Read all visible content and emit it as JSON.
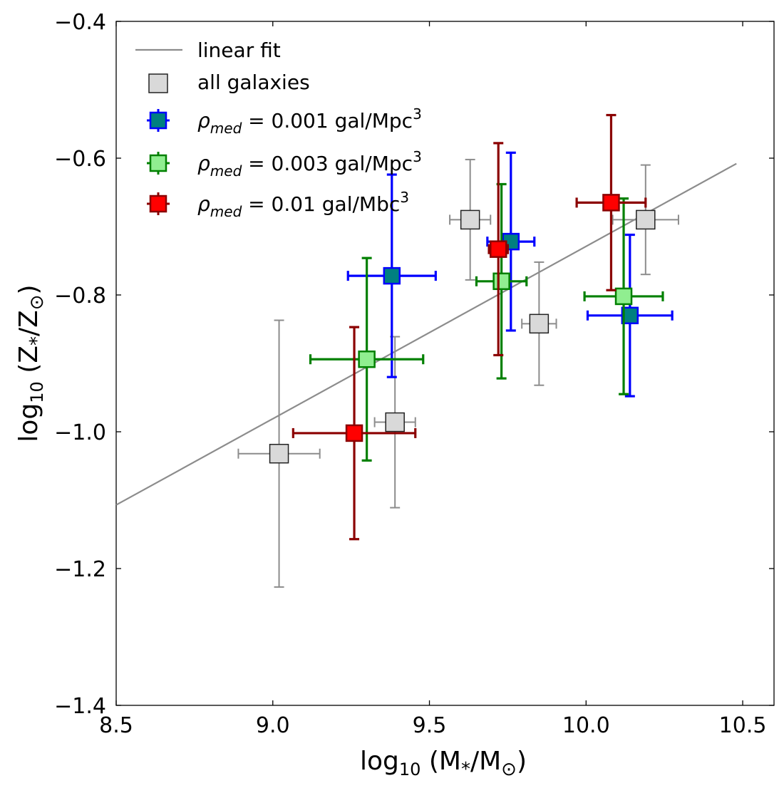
{
  "chart_data": {
    "type": "scatter",
    "title": "",
    "xlabel": {
      "main": "log",
      "sub": "10",
      "rest": " (M",
      "star": "*",
      "mid": "/M",
      "sun": "⊙",
      "end": ")"
    },
    "ylabel": {
      "main": "log",
      "sub": "10",
      "rest": " (Z",
      "star": "*",
      "mid": "/Z",
      "sun": "⊙",
      "end": ")"
    },
    "xlim": [
      8.5,
      10.6
    ],
    "ylim": [
      -1.4,
      -0.4
    ],
    "xticks": [
      "8.5",
      "9.0",
      "9.5",
      "10.0",
      "10.5"
    ],
    "yticks": [
      "−0.4",
      "−0.6",
      "−0.8",
      "−1.0",
      "−1.2",
      "−1.4"
    ],
    "grid": false,
    "legend_position": "top-left",
    "fit": {
      "name": "linear fit",
      "x": [
        8.5,
        10.48
      ],
      "y": [
        -1.107,
        -0.608
      ],
      "color": "#8c8c8c"
    },
    "series": [
      {
        "name": "all galaxies",
        "marker_face": "#d9d9d9",
        "marker_edge": "#222222",
        "err_color": "#8c8c8c",
        "points": [
          {
            "x": 9.02,
            "y": -1.032,
            "xerr": 0.13,
            "yerr": 0.195
          },
          {
            "x": 9.39,
            "y": -0.986,
            "xerr": 0.065,
            "yerr": 0.125
          },
          {
            "x": 9.63,
            "y": -0.69,
            "xerr": 0.065,
            "yerr": 0.088
          },
          {
            "x": 9.85,
            "y": -0.842,
            "xerr": 0.055,
            "yerr": 0.09
          },
          {
            "x": 10.19,
            "y": -0.69,
            "xerr": 0.105,
            "yerr": 0.08
          }
        ]
      },
      {
        "name_sym": "ρ",
        "name_sub": "med",
        "name_val": " = 0.001 gal/Mpc",
        "name_sup": "3",
        "marker_face": "#008080",
        "marker_edge": "#0000ff",
        "err_color": "#0000ff",
        "points": [
          {
            "x": 9.38,
            "y": -0.772,
            "xerr": 0.14,
            "yerr": 0.148
          },
          {
            "x": 9.76,
            "y": -0.722,
            "xerr": 0.075,
            "yerr": 0.13
          },
          {
            "x": 10.14,
            "y": -0.83,
            "xerr": 0.135,
            "yerr": 0.118
          }
        ]
      },
      {
        "name_sym": "ρ",
        "name_sub": "med",
        "name_val": " = 0.003 gal/Mpc",
        "name_sup": "3",
        "marker_face": "#90ee90",
        "marker_edge": "#008000",
        "err_color": "#008000",
        "points": [
          {
            "x": 9.3,
            "y": -0.894,
            "xerr": 0.18,
            "yerr": 0.148
          },
          {
            "x": 9.73,
            "y": -0.78,
            "xerr": 0.08,
            "yerr": 0.142
          },
          {
            "x": 10.12,
            "y": -0.802,
            "xerr": 0.125,
            "yerr": 0.143
          }
        ]
      },
      {
        "name_sym": "ρ",
        "name_sub": "med",
        "name_val": " = 0.01 gal/Mbc",
        "name_sup": "3",
        "marker_face": "#ff0000",
        "marker_edge": "#8b0000",
        "err_color": "#8b0000",
        "points": [
          {
            "x": 9.26,
            "y": -1.002,
            "xerr": 0.195,
            "yerr": 0.155
          },
          {
            "x": 9.72,
            "y": -0.733,
            "xerr": 0.03,
            "yerr": 0.155
          },
          {
            "x": 10.08,
            "y": -0.665,
            "xerr": 0.11,
            "yerr": 0.128
          }
        ]
      }
    ]
  }
}
